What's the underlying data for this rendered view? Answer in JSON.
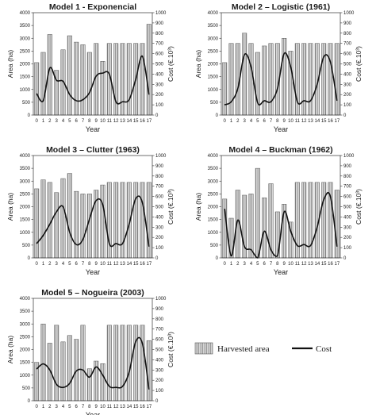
{
  "chart_data": [
    {
      "type": "bar",
      "title": "Model 1 - Exponencial",
      "xlabel": "Year",
      "ylabel": "Area (ha)",
      "y2label": "Cost (€.10³)",
      "categories": [
        "0",
        "1",
        "2",
        "3",
        "4",
        "5",
        "6",
        "7",
        "8",
        "9",
        "10",
        "11",
        "12",
        "13",
        "14",
        "15",
        "16",
        "17"
      ],
      "ylim": [
        0,
        4000
      ],
      "y2lim": [
        0,
        1000
      ],
      "yticks": [
        "0",
        "500",
        "1000",
        "1500",
        "2000",
        "2500",
        "3000",
        "3500",
        "4000"
      ],
      "y2ticks": [
        "0",
        "100",
        "200",
        "300",
        "400",
        "500",
        "600",
        "700",
        "800",
        "900",
        "1000"
      ],
      "series": [
        {
          "name": "Harvested area",
          "type": "bar",
          "values": [
            2050,
            2450,
            3150,
            1750,
            2550,
            3100,
            2850,
            2750,
            2450,
            2800,
            2100,
            2800,
            2800,
            2800,
            2800,
            2800,
            2800,
            3550
          ]
        },
        {
          "name": "Cost",
          "type": "line",
          "axis": "right",
          "values": [
            210,
            140,
            460,
            340,
            330,
            200,
            140,
            150,
            220,
            380,
            410,
            400,
            130,
            130,
            150,
            350,
            575,
            200
          ]
        }
      ]
    },
    {
      "type": "bar",
      "title": "Model 2 – Logistic (1961)",
      "xlabel": "Year",
      "ylabel": "Area (ha)",
      "y2label": "Cost (€.10³)",
      "categories": [
        "0",
        "1",
        "2",
        "3",
        "4",
        "5",
        "6",
        "7",
        "8",
        "9",
        "10",
        "11",
        "12",
        "13",
        "14",
        "15",
        "16",
        "17"
      ],
      "ylim": [
        0,
        4000
      ],
      "y2lim": [
        0,
        1000
      ],
      "yticks": [
        "0",
        "500",
        "1000",
        "1500",
        "2000",
        "2500",
        "3000",
        "3500",
        "4000"
      ],
      "y2ticks": [
        "0",
        "100",
        "200",
        "300",
        "400",
        "500",
        "600",
        "700",
        "800",
        "900",
        "1000"
      ],
      "series": [
        {
          "name": "Harvested area",
          "type": "bar",
          "values": [
            2050,
            2800,
            2800,
            3200,
            2800,
            2450,
            2700,
            2800,
            2800,
            3000,
            2500,
            2800,
            2800,
            2800,
            2800,
            2800,
            2800,
            2800
          ]
        },
        {
          "name": "Cost",
          "type": "line",
          "axis": "right",
          "values": [
            100,
            130,
            260,
            590,
            470,
            120,
            140,
            130,
            260,
            600,
            470,
            130,
            140,
            140,
            300,
            570,
            520,
            140
          ]
        }
      ]
    },
    {
      "type": "bar",
      "title": "Model 3 – Clutter (1963)",
      "xlabel": "Year",
      "ylabel": "Area (ha)",
      "y2label": "Cost (€.10³)",
      "categories": [
        "0",
        "1",
        "2",
        "3",
        "4",
        "5",
        "6",
        "7",
        "8",
        "9",
        "10",
        "11",
        "12",
        "13",
        "14",
        "15",
        "16",
        "17"
      ],
      "ylim": [
        0,
        4000
      ],
      "y2lim": [
        0,
        1000
      ],
      "yticks": [
        "0",
        "500",
        "1000",
        "1500",
        "2000",
        "2500",
        "3000",
        "3500",
        "4000"
      ],
      "y2ticks": [
        "0",
        "100",
        "200",
        "300",
        "400",
        "500",
        "600",
        "700",
        "800",
        "900",
        "1000"
      ],
      "series": [
        {
          "name": "Harvested area",
          "type": "bar",
          "values": [
            2700,
            3050,
            2950,
            2550,
            3100,
            3300,
            2600,
            2500,
            2500,
            2650,
            2850,
            2950,
            2950,
            2950,
            2950,
            2950,
            2950,
            2950
          ]
        },
        {
          "name": "Cost",
          "type": "line",
          "axis": "right",
          "values": [
            140,
            220,
            330,
            450,
            500,
            250,
            130,
            180,
            380,
            560,
            520,
            140,
            140,
            140,
            330,
            580,
            540,
            110
          ]
        }
      ]
    },
    {
      "type": "bar",
      "title": "Model 4 – Buckman (1962)",
      "xlabel": "Year",
      "ylabel": "Area (ha)",
      "y2label": "Cost (€.10³)",
      "categories": [
        "0",
        "1",
        "2",
        "3",
        "4",
        "5",
        "6",
        "7",
        "8",
        "9",
        "10",
        "11",
        "12",
        "13",
        "14",
        "15",
        "16",
        "17"
      ],
      "ylim": [
        0,
        4000
      ],
      "y2lim": [
        0,
        1000
      ],
      "yticks": [
        "0",
        "500",
        "1000",
        "1500",
        "2000",
        "2500",
        "3000",
        "3500",
        "4000"
      ],
      "y2ticks": [
        "0",
        "100",
        "200",
        "300",
        "400",
        "500",
        "600",
        "700",
        "800",
        "900",
        "1000"
      ],
      "series": [
        {
          "name": "Harvested area",
          "type": "bar",
          "values": [
            2300,
            1550,
            2650,
            2450,
            2500,
            3500,
            2350,
            2900,
            1800,
            2100,
            1400,
            2950,
            2950,
            2950,
            2950,
            2950,
            2950,
            2650
          ]
        },
        {
          "name": "Cost",
          "type": "line",
          "axis": "right",
          "values": [
            480,
            20,
            370,
            110,
            80,
            0,
            260,
            80,
            20,
            450,
            260,
            120,
            130,
            120,
            300,
            570,
            600,
            110
          ]
        }
      ]
    },
    {
      "type": "bar",
      "title": "Model 5 – Nogueira (2003)",
      "xlabel": "Year",
      "ylabel": "Area (ha)",
      "y2label": "Cost (€.10³)",
      "categories": [
        "0",
        "1",
        "2",
        "3",
        "4",
        "5",
        "6",
        "7",
        "8",
        "9",
        "10",
        "11",
        "12",
        "13",
        "14",
        "15",
        "16",
        "17"
      ],
      "ylim": [
        0,
        4000
      ],
      "y2lim": [
        0,
        1000
      ],
      "yticks": [
        "0",
        "500",
        "1000",
        "1500",
        "2000",
        "2500",
        "3000",
        "3500",
        "4000"
      ],
      "y2ticks": [
        "0",
        "100",
        "200",
        "300",
        "400",
        "500",
        "600",
        "700",
        "800",
        "900",
        "1000"
      ],
      "series": [
        {
          "name": "Harvested area",
          "type": "bar",
          "values": [
            1500,
            3000,
            2250,
            2950,
            2300,
            2550,
            2400,
            2950,
            1250,
            1550,
            1450,
            2950,
            2950,
            2950,
            2950,
            2950,
            2950,
            2350
          ]
        },
        {
          "name": "Cost",
          "type": "line",
          "axis": "right",
          "values": [
            310,
            360,
            300,
            160,
            130,
            170,
            290,
            300,
            230,
            330,
            250,
            140,
            130,
            140,
            280,
            580,
            560,
            110
          ]
        }
      ]
    }
  ],
  "legend": {
    "bar_label": "Harvested area",
    "line_label": "Cost"
  },
  "colors": {
    "bar_fill": "#cfcfcf",
    "bar_stroke": "#555555",
    "line": "#111111"
  }
}
